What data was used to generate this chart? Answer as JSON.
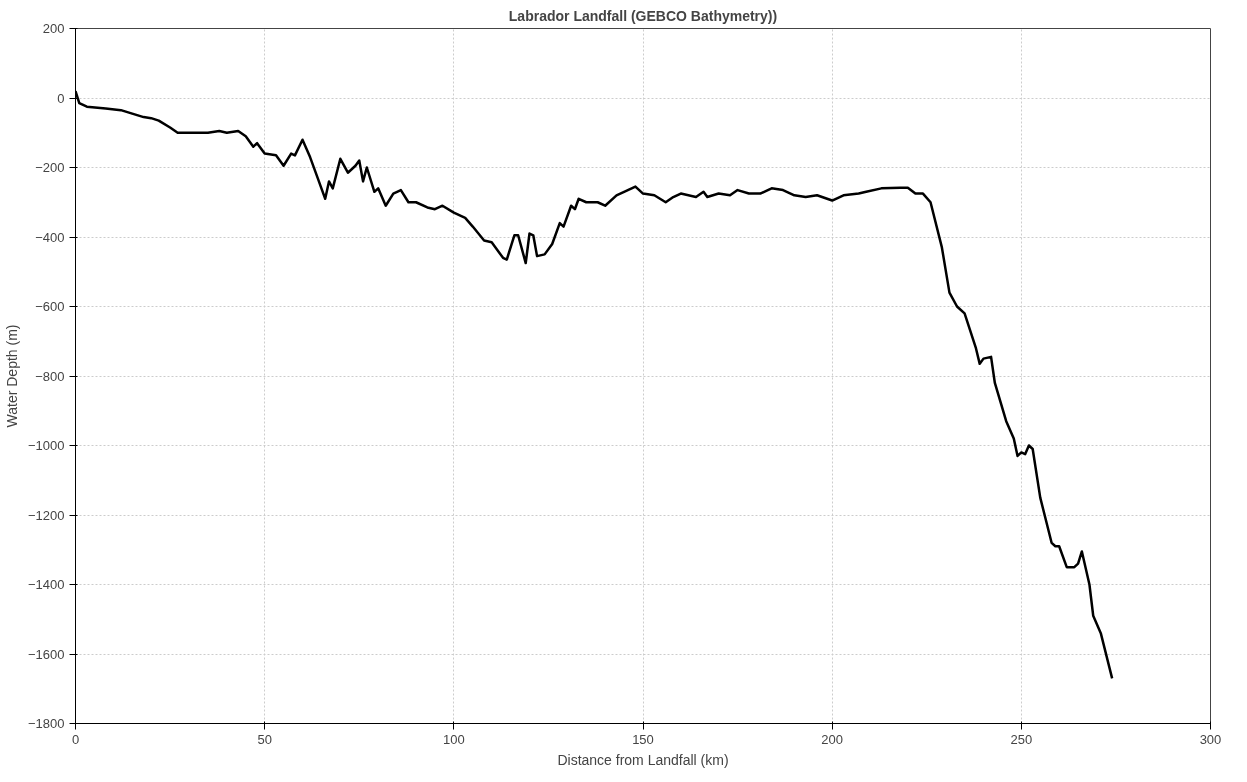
{
  "chart_data": {
    "type": "line",
    "title": "Labrador Landfall (GEBCO Bathymetry))",
    "xlabel": "Distance from Landfall (km)",
    "ylabel": "Water Depth (m)",
    "xlim": [
      0,
      300
    ],
    "xticks": [
      0,
      50,
      100,
      150,
      200,
      250,
      300
    ],
    "ylim": [
      -1800,
      200
    ],
    "yticks": [
      -1800,
      -1600,
      -1400,
      -1200,
      -1000,
      -800,
      -600,
      -400,
      -200,
      0,
      200
    ],
    "grid": true,
    "series": [
      {
        "color": "#000000",
        "x": [
          0,
          1,
          3,
          8,
          12,
          15,
          18,
          20,
          22,
          25,
          27,
          30,
          35,
          38,
          40,
          43,
          45,
          47,
          48,
          50,
          53,
          55,
          57,
          58,
          60,
          62,
          64,
          65,
          66,
          67,
          68,
          70,
          72,
          74,
          75,
          76,
          77,
          79,
          80,
          82,
          84,
          86,
          88,
          90,
          93,
          95,
          97,
          100,
          103,
          105,
          108,
          110,
          113,
          114,
          116,
          117,
          119,
          120,
          121,
          122,
          124,
          126,
          128,
          129,
          131,
          132,
          133,
          135,
          138,
          140,
          143,
          146,
          148,
          150,
          153,
          156,
          158,
          160,
          164,
          166,
          167,
          170,
          173,
          175,
          178,
          181,
          184,
          187,
          190,
          193,
          196,
          200,
          203,
          207,
          209,
          213,
          218,
          220,
          222,
          224,
          226,
          229,
          231,
          233,
          235,
          238,
          239,
          240,
          242,
          243,
          246,
          248,
          249,
          250,
          251,
          252,
          253,
          255,
          258,
          259,
          260,
          262,
          264,
          265,
          266,
          268,
          269,
          271,
          274
        ],
        "values": [
          20,
          -15,
          -25,
          -30,
          -35,
          -45,
          -55,
          -58,
          -65,
          -85,
          -100,
          -100,
          -100,
          -95,
          -100,
          -95,
          -110,
          -140,
          -130,
          -160,
          -165,
          -195,
          -160,
          -165,
          -120,
          -170,
          -230,
          -260,
          -290,
          -240,
          -260,
          -175,
          -215,
          -195,
          -180,
          -240,
          -200,
          -270,
          -260,
          -310,
          -275,
          -265,
          -300,
          -300,
          -315,
          -320,
          -310,
          -330,
          -345,
          -370,
          -410,
          -415,
          -460,
          -465,
          -395,
          -395,
          -475,
          -390,
          -395,
          -455,
          -450,
          -420,
          -360,
          -370,
          -310,
          -320,
          -290,
          -300,
          -300,
          -310,
          -280,
          -265,
          -255,
          -275,
          -280,
          -300,
          -285,
          -275,
          -285,
          -270,
          -285,
          -275,
          -280,
          -265,
          -275,
          -275,
          -260,
          -265,
          -280,
          -285,
          -280,
          -295,
          -280,
          -275,
          -270,
          -260,
          -258,
          -258,
          -275,
          -275,
          -300,
          -430,
          -560,
          -600,
          -620,
          -720,
          -765,
          -750,
          -745,
          -820,
          -930,
          -980,
          -1030,
          -1020,
          -1025,
          -1000,
          -1010,
          -1150,
          -1280,
          -1290,
          -1290,
          -1350,
          -1350,
          -1340,
          -1305,
          -1400,
          -1490,
          -1540,
          -1670
        ]
      }
    ]
  }
}
